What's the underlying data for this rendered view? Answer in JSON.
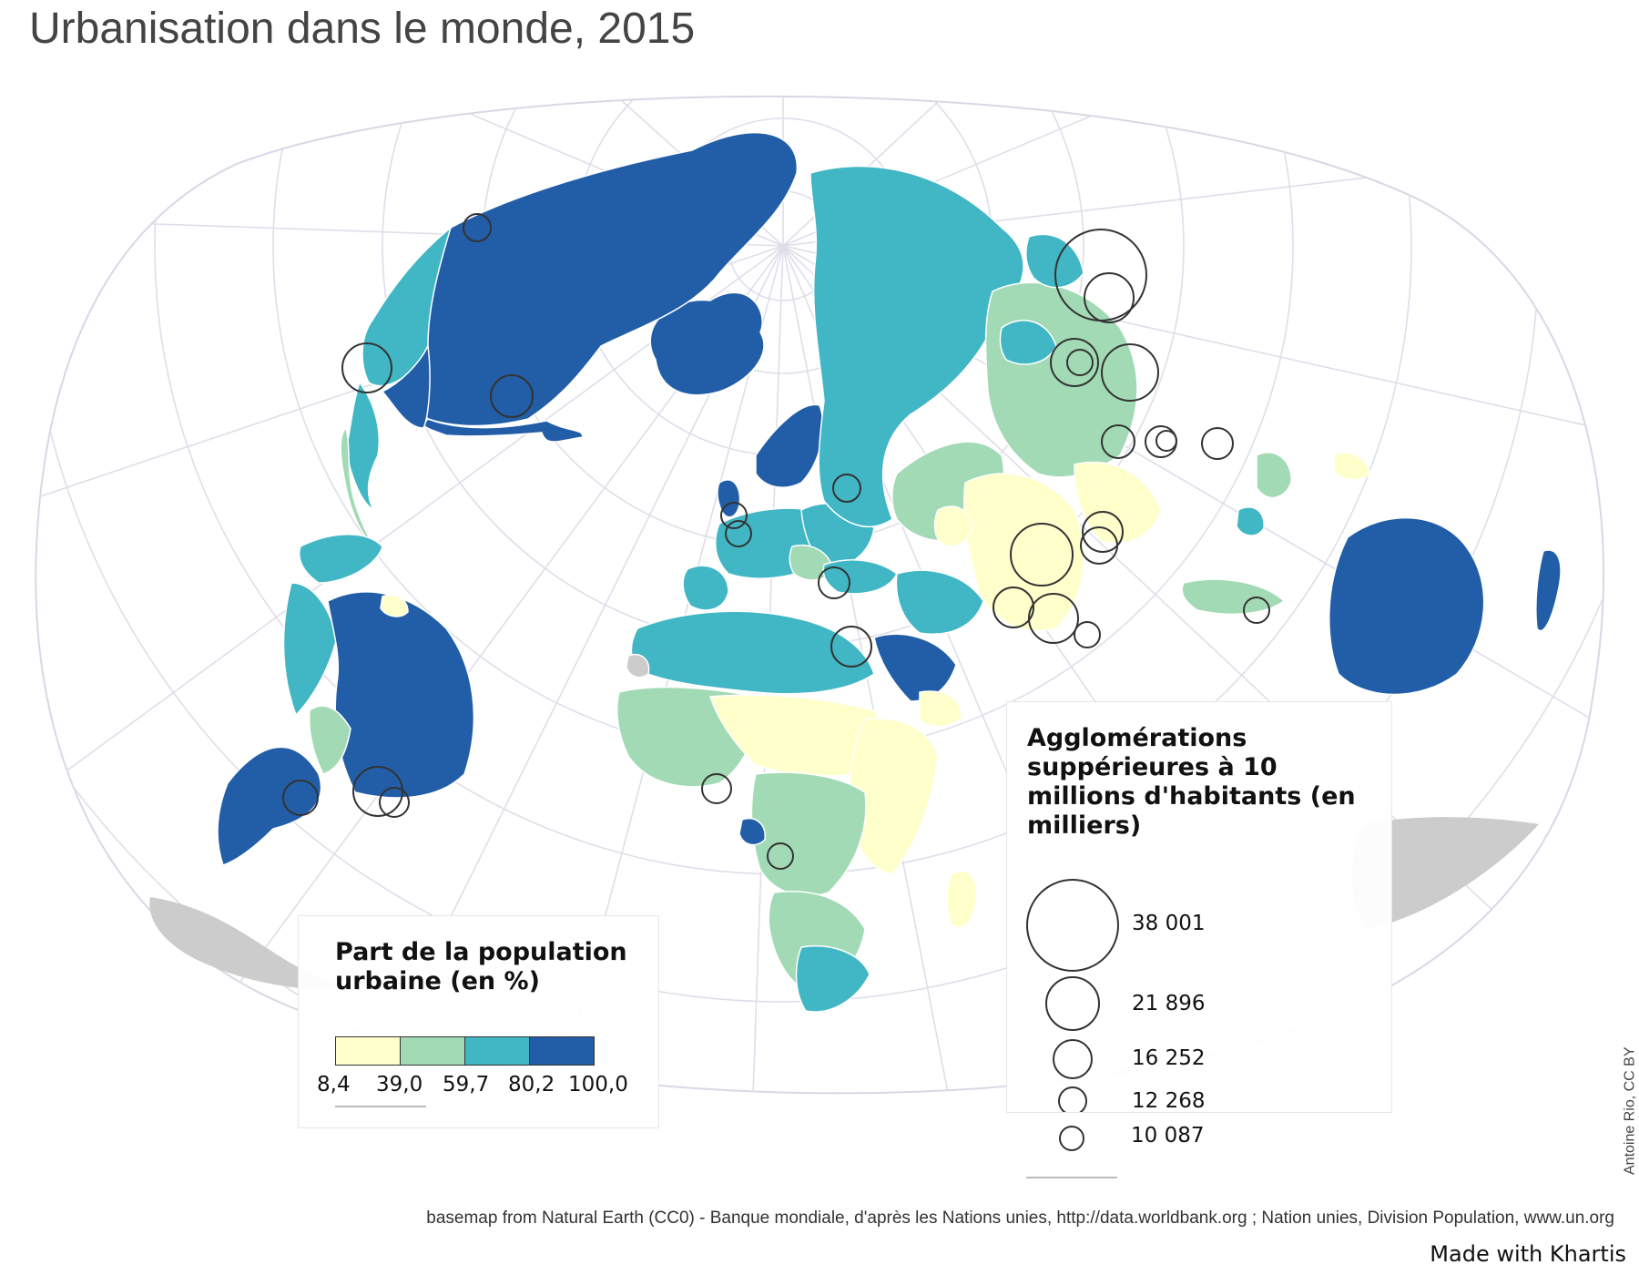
{
  "title": "Urbanisation dans le monde, 2015",
  "legend_urban": {
    "title": "Part de la population urbaine (en %)",
    "classes": [
      {
        "from": 8.4,
        "to": 39.0,
        "color": "#ffffcc"
      },
      {
        "from": 39.0,
        "to": 59.7,
        "color": "#a1dab4"
      },
      {
        "from": 59.7,
        "to": 80.2,
        "color": "#41b6c4"
      },
      {
        "from": 80.2,
        "to": 100.0,
        "color": "#225ea8"
      }
    ],
    "breaks": [
      "8,4",
      "39,0",
      "59,7",
      "80,2",
      "100,0"
    ]
  },
  "legend_cities": {
    "title": "Agglomérations suppérieures à 10 millions d'habitants (en milliers)",
    "sizes": [
      {
        "label": "38 001",
        "value": 38001
      },
      {
        "label": "21 896",
        "value": 21896
      },
      {
        "label": "16 252",
        "value": 16252
      },
      {
        "label": "12 268",
        "value": 12268
      },
      {
        "label": "10 087",
        "value": 10087
      }
    ]
  },
  "colors": {
    "no_data": "#cccccc",
    "graticule": "#dcdcea",
    "circle_stroke": "#333333"
  },
  "credit": "Antoine Rio, CC BY",
  "source": "basemap from Natural Earth (CC0) - Banque mondiale, d'après les Nations unies, http://data.worldbank.org ; Nation unies, Division Population, www.un.org",
  "made_with": "Made with Khartis"
}
